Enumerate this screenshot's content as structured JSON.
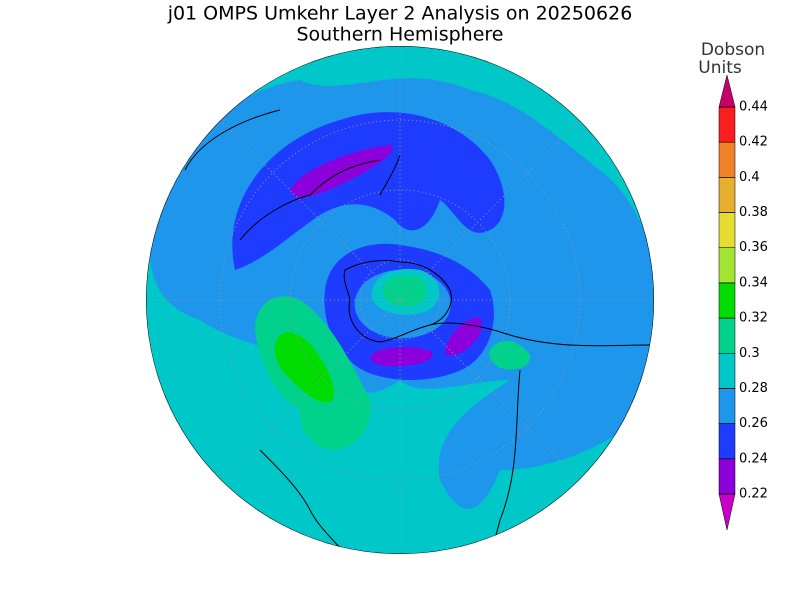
{
  "header": {
    "title": "j01 OMPS Umkehr Layer 2 Analysis on 20250626",
    "subtitle": "Southern Hemisphere"
  },
  "colorbar": {
    "label": [
      "Dobson",
      "Units"
    ],
    "ticks": [
      0.22,
      0.24,
      0.26,
      0.28,
      0.3,
      0.32,
      0.34,
      0.36,
      0.38,
      0.4,
      0.42,
      0.44
    ],
    "colors": [
      "#c800c8",
      "#8c00dc",
      "#1e3cff",
      "#1e96ec",
      "#00c8c8",
      "#00d28c",
      "#00dc00",
      "#a0e632",
      "#e6dc32",
      "#e6af2d",
      "#f08228",
      "#fa1e1e",
      "#c8006e"
    ]
  }
}
